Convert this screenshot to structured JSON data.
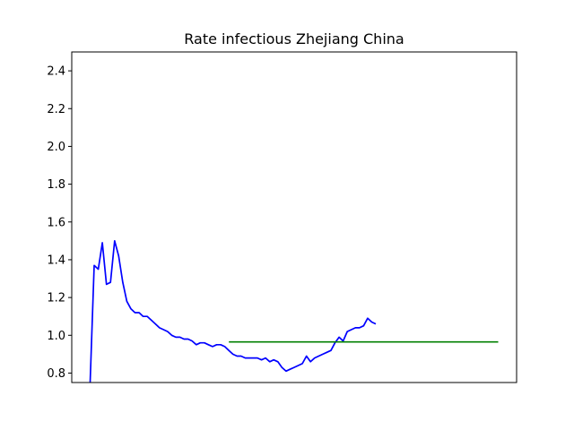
{
  "chart_data": {
    "type": "line",
    "title": "Rate infectious Zhejiang China",
    "xlabel": "",
    "ylabel": "",
    "ylim": [
      0.75,
      2.5
    ],
    "xlim": [
      -4.5,
      104.5
    ],
    "y_ticks": [
      "0.8",
      "1.0",
      "1.2",
      "1.4",
      "1.6",
      "1.8",
      "2.0",
      "2.2",
      "2.4"
    ],
    "grid": false,
    "series": [
      {
        "color": "#0000ff",
        "x": [
          0,
          1,
          2,
          3,
          4,
          5,
          6,
          7,
          8,
          9,
          10,
          11,
          12,
          13,
          14,
          15,
          16,
          17,
          18,
          19,
          20,
          21,
          22,
          23,
          24,
          25,
          26,
          27,
          28,
          29,
          30,
          31,
          32,
          33,
          34,
          35,
          36,
          37,
          38,
          39,
          40,
          41,
          42,
          43,
          44,
          45,
          46,
          47,
          48,
          49,
          50,
          51,
          52,
          53,
          54,
          55,
          56,
          57,
          58,
          59,
          60,
          61,
          62,
          63,
          64,
          65,
          66,
          67,
          68,
          69,
          70
        ],
        "values": [
          0.75,
          1.37,
          1.35,
          1.49,
          1.27,
          1.28,
          1.5,
          1.42,
          1.28,
          1.18,
          1.14,
          1.12,
          1.12,
          1.1,
          1.1,
          1.08,
          1.06,
          1.04,
          1.03,
          1.02,
          1.0,
          0.99,
          0.99,
          0.98,
          0.98,
          0.97,
          0.95,
          0.96,
          0.96,
          0.95,
          0.94,
          0.95,
          0.95,
          0.94,
          0.92,
          0.9,
          0.89,
          0.89,
          0.88,
          0.88,
          0.88,
          0.88,
          0.87,
          0.88,
          0.86,
          0.87,
          0.86,
          0.83,
          0.81,
          0.82,
          0.83,
          0.84,
          0.85,
          0.89,
          0.86,
          0.88,
          0.89,
          0.9,
          0.91,
          0.92,
          0.96,
          0.99,
          0.97,
          1.02,
          1.03,
          1.04,
          1.04,
          1.05,
          1.09,
          1.07,
          1.06
        ]
      },
      {
        "color": "#008000",
        "x": [
          34,
          100
        ],
        "values": [
          0.965,
          0.965
        ]
      }
    ]
  }
}
